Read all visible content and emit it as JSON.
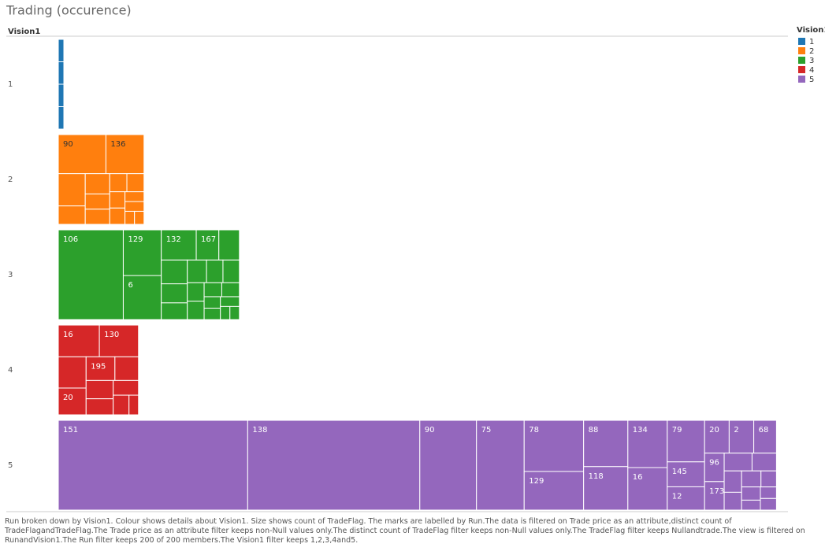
{
  "chart_data": {
    "type": "treemap",
    "title": "Trading (occurence)",
    "row_header": "Vision1",
    "legend_title": "Vision1",
    "caption": "Run broken down by Vision1. Colour shows details about Vision1. Size shows count of TradeFlag. The marks are labelled by Run.The data is filtered on Trade price as an attribute,distinct count of TradeFlagandTradeFlag.The Trade price as an attribute filter keeps non-Null values only.The distinct count of TradeFlag filter keeps non-Null values only.The TradeFlag filter keeps Nullandtrade.The view is filtered on RunandVision1.The Run filter keeps 200 of 200 members.The Vision1 filter keeps 1,2,3,4and5.",
    "series": [
      {
        "name": "1",
        "color": "#1f77b4",
        "values": [
          2,
          2,
          2,
          2
        ],
        "labels": [
          null,
          null,
          null,
          null
        ]
      },
      {
        "name": "2",
        "color": "#ff7f0e",
        "values": [
          30,
          24,
          14,
          8,
          8,
          6,
          6,
          5,
          5,
          4,
          4,
          3,
          3,
          2,
          2
        ],
        "labels": [
          "90",
          "136",
          null,
          null,
          null,
          null,
          null,
          null,
          null,
          null,
          null,
          null,
          null,
          null,
          null
        ]
      },
      {
        "name": "3",
        "color": "#2ca02c",
        "values": [
          94,
          28,
          27,
          17,
          11,
          10,
          10,
          8,
          7,
          7,
          6,
          6,
          5,
          5,
          4,
          4,
          3,
          3,
          3,
          2,
          2
        ],
        "labels": [
          "106",
          "129",
          "6",
          "132",
          "167",
          null,
          null,
          null,
          null,
          null,
          null,
          null,
          null,
          null,
          null,
          null,
          null,
          null,
          null,
          null,
          null
        ]
      },
      {
        "name": "4",
        "color": "#d62728",
        "values": [
          21,
          20,
          14,
          12,
          11,
          9,
          8,
          7,
          6,
          5,
          3
        ],
        "labels": [
          "16",
          "130",
          null,
          "20",
          "195",
          null,
          null,
          null,
          null,
          null,
          null
        ]
      },
      {
        "name": "5",
        "color": "#9467bd",
        "values": [
          274,
          249,
          82,
          69,
          49,
          37,
          33,
          31,
          30,
          27,
          25,
          15,
          14,
          13,
          13,
          12,
          9,
          9,
          8,
          7,
          6,
          5,
          5,
          4,
          4,
          3,
          3,
          3
        ],
        "labels": [
          "151",
          "138",
          "90",
          "75",
          "78",
          "129",
          "88",
          "118",
          "134",
          "16",
          "79",
          "145",
          "12",
          "20",
          "2",
          "68",
          "96",
          "173",
          null,
          null,
          null,
          null,
          null,
          null,
          null,
          null,
          null,
          null
        ]
      }
    ]
  }
}
